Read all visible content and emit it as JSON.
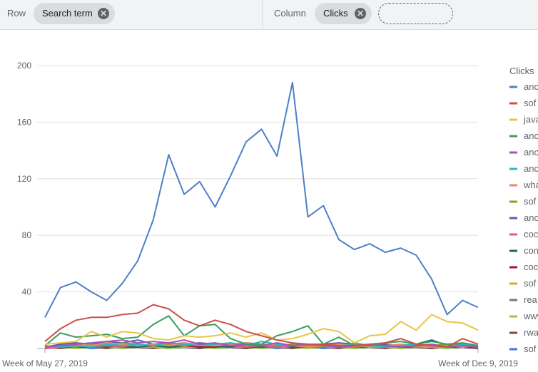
{
  "toolbar": {
    "row_label": "Row",
    "row_chip": "Search term",
    "column_label": "Column",
    "column_chip": "Clicks",
    "remove_glyph": "✕"
  },
  "colors": {
    "toolbar_bg": "#f1f3f4",
    "chip_bg": "#dadce0",
    "gridline": "#e0e0e0",
    "axis_text": "#5f6368"
  },
  "chart_data": {
    "type": "line",
    "title": "",
    "xlabel": "",
    "ylabel": "",
    "ylim": [
      0,
      200
    ],
    "yticks": [
      40,
      80,
      120,
      160,
      200
    ],
    "grid": true,
    "legend_position": "right",
    "legend_title": "Clicks",
    "x_tick_labels": [
      "Week of May 27, 2019",
      "Week of Dec 9, 2019"
    ],
    "x": [
      "2019-05-27",
      "2019-06-03",
      "2019-06-10",
      "2019-06-17",
      "2019-06-24",
      "2019-07-01",
      "2019-07-08",
      "2019-07-15",
      "2019-07-22",
      "2019-07-29",
      "2019-08-05",
      "2019-08-12",
      "2019-08-19",
      "2019-08-26",
      "2019-09-02",
      "2019-09-09",
      "2019-09-16",
      "2019-09-23",
      "2019-09-30",
      "2019-10-07",
      "2019-10-14",
      "2019-10-21",
      "2019-10-28",
      "2019-11-04",
      "2019-11-11",
      "2019-11-18",
      "2019-11-25",
      "2019-12-02",
      "2019-12-09"
    ],
    "series": [
      {
        "name": "anc",
        "color": "#4e7fc6",
        "values": [
          22,
          43,
          47,
          40,
          34,
          46,
          62,
          91,
          137,
          109,
          118,
          100,
          122,
          146,
          155,
          136,
          188,
          93,
          101,
          77,
          70,
          74,
          68,
          71,
          66,
          49,
          24,
          34,
          29
        ]
      },
      {
        "name": "sof",
        "color": "#c9514a",
        "values": [
          5,
          14,
          20,
          22,
          22,
          24,
          25,
          31,
          28,
          20,
          16,
          20,
          17,
          12,
          9,
          6,
          4,
          3,
          3,
          2,
          2,
          3,
          4,
          7,
          3,
          2,
          1,
          7,
          3
        ]
      },
      {
        "name": "java",
        "color": "#e8c547",
        "values": [
          3,
          4,
          5,
          12,
          8,
          12,
          11,
          7,
          6,
          9,
          8,
          9,
          11,
          8,
          11,
          6,
          7,
          10,
          14,
          12,
          4,
          9,
          10,
          19,
          13,
          24,
          19,
          18,
          13
        ]
      },
      {
        "name": "anc",
        "color": "#3a9e5c",
        "values": [
          2,
          11,
          8,
          9,
          10,
          7,
          8,
          17,
          23,
          9,
          16,
          17,
          7,
          3,
          3,
          9,
          12,
          16,
          3,
          8,
          2,
          2,
          4,
          5,
          3,
          5,
          3,
          4,
          2
        ]
      },
      {
        "name": "anc",
        "color": "#a84fbf",
        "values": [
          1,
          2,
          3,
          4,
          5,
          6,
          4,
          5,
          4,
          6,
          3,
          4,
          2,
          3,
          2,
          4,
          2,
          3,
          2,
          1,
          2,
          3,
          2,
          1,
          2,
          3,
          1,
          2,
          1
        ]
      },
      {
        "name": "anc",
        "color": "#33b3bd",
        "values": [
          1,
          1,
          2,
          1,
          3,
          2,
          3,
          2,
          4,
          3,
          2,
          3,
          4,
          2,
          5,
          3,
          2,
          3,
          2,
          1,
          4,
          2,
          1,
          2,
          3,
          2,
          1,
          3,
          2
        ]
      },
      {
        "name": "wha",
        "color": "#e88a6a",
        "values": [
          2,
          1,
          3,
          2,
          4,
          3,
          2,
          3,
          2,
          4,
          3,
          2,
          3,
          4,
          2,
          3,
          2,
          1,
          2,
          3,
          2,
          1,
          2,
          3,
          2,
          1,
          2,
          1,
          2
        ]
      },
      {
        "name": "sof",
        "color": "#8a9c2e",
        "values": [
          1,
          2,
          1,
          3,
          2,
          4,
          3,
          2,
          3,
          2,
          3,
          2,
          4,
          2,
          3,
          2,
          3,
          2,
          1,
          2,
          3,
          2,
          1,
          2,
          1,
          2,
          3,
          2,
          1
        ]
      },
      {
        "name": "anc",
        "color": "#5a5fa8",
        "values": [
          1,
          3,
          4,
          3,
          5,
          4,
          6,
          3,
          4,
          3,
          4,
          3,
          3,
          4,
          3,
          2,
          3,
          2,
          3,
          4,
          3,
          2,
          3,
          2,
          3,
          2,
          1,
          2,
          1
        ]
      },
      {
        "name": "coc",
        "color": "#e0588a",
        "values": [
          0,
          1,
          2,
          1,
          2,
          1,
          3,
          2,
          3,
          4,
          2,
          3,
          2,
          1,
          2,
          1,
          2,
          1,
          2,
          1,
          1,
          2,
          1,
          2,
          1,
          2,
          1,
          2,
          1
        ]
      },
      {
        "name": "con",
        "color": "#1e6b5e",
        "values": [
          1,
          1,
          1,
          2,
          1,
          2,
          1,
          2,
          1,
          2,
          3,
          2,
          1,
          2,
          1,
          2,
          1,
          2,
          1,
          2,
          1,
          2,
          1,
          2,
          3,
          6,
          2,
          3,
          1
        ]
      },
      {
        "name": "coc",
        "color": "#a3153e",
        "values": [
          0,
          1,
          1,
          1,
          2,
          1,
          1,
          2,
          1,
          2,
          1,
          1,
          2,
          1,
          1,
          2,
          1,
          1,
          2,
          1,
          1,
          1,
          2,
          1,
          1,
          2,
          1,
          1,
          1
        ]
      },
      {
        "name": "sof",
        "color": "#e0a03a",
        "values": [
          1,
          2,
          1,
          2,
          1,
          2,
          1,
          1,
          2,
          1,
          2,
          1,
          2,
          1,
          2,
          1,
          2,
          1,
          2,
          1,
          2,
          1,
          2,
          1,
          2,
          1,
          1,
          2,
          1
        ]
      },
      {
        "name": "rea",
        "color": "#6b7a8a",
        "values": [
          1,
          1,
          2,
          1,
          1,
          2,
          1,
          2,
          1,
          1,
          2,
          1,
          1,
          2,
          1,
          1,
          2,
          1,
          1,
          2,
          1,
          1,
          2,
          1,
          1,
          2,
          1,
          1,
          2
        ]
      },
      {
        "name": "www",
        "color": "#9bc44a",
        "values": [
          0,
          1,
          0,
          1,
          1,
          0,
          1,
          1,
          0,
          1,
          1,
          0,
          1,
          1,
          0,
          1,
          1,
          0,
          1,
          1,
          0,
          1,
          1,
          0,
          1,
          1,
          0,
          1,
          1
        ]
      },
      {
        "name": "rwa",
        "color": "#7a4a3a",
        "values": [
          1,
          0,
          1,
          1,
          0,
          1,
          1,
          0,
          1,
          1,
          0,
          1,
          1,
          0,
          1,
          1,
          0,
          1,
          1,
          0,
          1,
          1,
          0,
          1,
          1,
          0,
          1,
          1,
          0
        ]
      },
      {
        "name": "sof",
        "color": "#3a7ad6",
        "values": [
          0,
          1,
          1,
          0,
          1,
          0,
          1,
          1,
          0,
          1,
          0,
          1,
          1,
          0,
          1,
          0,
          1,
          1,
          0,
          1,
          0,
          1,
          1,
          0,
          1,
          0,
          1,
          1,
          0
        ]
      }
    ]
  }
}
